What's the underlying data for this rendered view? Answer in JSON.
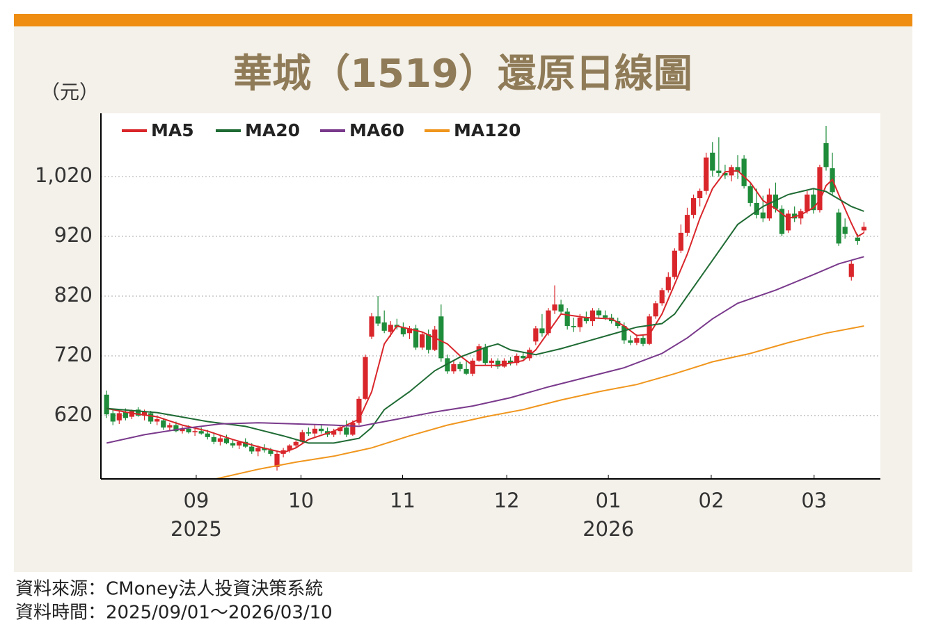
{
  "chart_data": {
    "type": "candlestick",
    "title": "華城（1519）還原日線圖",
    "y_label": "（元）",
    "up_color": "#d9262b",
    "down_color": "#1e8c3a",
    "grid": true,
    "ylim": [
      514,
      1126
    ],
    "yticks": [
      620,
      720,
      820,
      920,
      {
        "value": 1020,
        "label": "1,020"
      }
    ],
    "xlim": [
      -0.9,
      122.6
    ],
    "xticks": [
      {
        "value": 14.2,
        "label": "09"
      },
      {
        "value": 30.8,
        "label": "10"
      },
      {
        "value": 46.9,
        "label": "11"
      },
      {
        "value": 63.4,
        "label": "12"
      },
      {
        "value": 79.5,
        "label": "01"
      },
      {
        "value": 95.8,
        "label": "02"
      },
      {
        "value": 112.1,
        "label": "03"
      }
    ],
    "x_year_labels": [
      {
        "value": 14.2,
        "label": "2025"
      },
      {
        "value": 79.5,
        "label": "2026"
      }
    ],
    "x": [
      0,
      1,
      2,
      3,
      4,
      5,
      6,
      7,
      8,
      9,
      10,
      11,
      12,
      13,
      14,
      15,
      16,
      17,
      18,
      19,
      20,
      21,
      22,
      23,
      24,
      25,
      26,
      27,
      28,
      29,
      30,
      31,
      32,
      33,
      34,
      35,
      36,
      37,
      38,
      39,
      40,
      41,
      42,
      43,
      44,
      45,
      46,
      47,
      48,
      49,
      50,
      51,
      52,
      53,
      54,
      55,
      56,
      57,
      58,
      59,
      60,
      61,
      62,
      63,
      64,
      65,
      66,
      67,
      68,
      69,
      70,
      71,
      72,
      73,
      74,
      75,
      76,
      77,
      78,
      79,
      80,
      81,
      82,
      83,
      84,
      85,
      86,
      87,
      88,
      89,
      90,
      91,
      92,
      93,
      94,
      95,
      96,
      97,
      98,
      99,
      100,
      101,
      102,
      103,
      104,
      105,
      106,
      107,
      108,
      109,
      110,
      111,
      112,
      113,
      114,
      115,
      116,
      117,
      118,
      119,
      120
    ],
    "ohlc": [
      [
        655,
        662,
        616,
        622
      ],
      [
        624,
        630,
        604,
        610
      ],
      [
        612,
        628,
        606,
        624
      ],
      [
        626,
        632,
        612,
        616
      ],
      [
        618,
        630,
        614,
        628
      ],
      [
        630,
        634,
        618,
        620
      ],
      [
        620,
        630,
        612,
        626
      ],
      [
        624,
        628,
        606,
        610
      ],
      [
        610,
        618,
        604,
        614
      ],
      [
        612,
        616,
        596,
        600
      ],
      [
        600,
        608,
        594,
        604
      ],
      [
        604,
        610,
        592,
        594
      ],
      [
        594,
        602,
        590,
        598
      ],
      [
        598,
        604,
        590,
        592
      ],
      [
        592,
        598,
        586,
        594
      ],
      [
        594,
        600,
        588,
        590
      ],
      [
        590,
        596,
        580,
        584
      ],
      [
        584,
        592,
        572,
        576
      ],
      [
        576,
        586,
        570,
        582
      ],
      [
        582,
        588,
        572,
        574
      ],
      [
        574,
        580,
        566,
        570
      ],
      [
        570,
        578,
        564,
        576
      ],
      [
        576,
        582,
        566,
        568
      ],
      [
        568,
        574,
        556,
        560
      ],
      [
        560,
        570,
        552,
        566
      ],
      [
        566,
        572,
        558,
        562
      ],
      [
        562,
        566,
        552,
        556
      ],
      [
        534,
        560,
        528,
        556
      ],
      [
        556,
        566,
        550,
        562
      ],
      [
        562,
        572,
        558,
        570
      ],
      [
        570,
        580,
        566,
        576
      ],
      [
        576,
        596,
        572,
        592
      ],
      [
        592,
        600,
        586,
        590
      ],
      [
        590,
        604,
        584,
        598
      ],
      [
        598,
        606,
        590,
        594
      ],
      [
        594,
        600,
        584,
        588
      ],
      [
        588,
        598,
        584,
        594
      ],
      [
        594,
        604,
        588,
        600
      ],
      [
        600,
        612,
        584,
        588
      ],
      [
        588,
        612,
        586,
        608
      ],
      [
        608,
        652,
        604,
        648
      ],
      [
        648,
        722,
        646,
        718
      ],
      [
        752,
        792,
        748,
        786
      ],
      [
        786,
        820,
        770,
        774
      ],
      [
        776,
        796,
        758,
        762
      ],
      [
        760,
        778,
        752,
        772
      ],
      [
        772,
        782,
        764,
        768
      ],
      [
        768,
        776,
        752,
        756
      ],
      [
        758,
        770,
        748,
        766
      ],
      [
        766,
        772,
        730,
        734
      ],
      [
        734,
        760,
        730,
        756
      ],
      [
        756,
        764,
        724,
        730
      ],
      [
        730,
        770,
        728,
        764
      ],
      [
        786,
        806,
        710,
        716
      ],
      [
        716,
        722,
        690,
        694
      ],
      [
        694,
        712,
        690,
        706
      ],
      [
        706,
        710,
        694,
        698
      ],
      [
        698,
        712,
        688,
        690
      ],
      [
        690,
        716,
        686,
        712
      ],
      [
        712,
        740,
        710,
        736
      ],
      [
        734,
        740,
        704,
        708
      ],
      [
        708,
        716,
        700,
        712
      ],
      [
        712,
        716,
        698,
        702
      ],
      [
        702,
        716,
        700,
        712
      ],
      [
        712,
        718,
        704,
        708
      ],
      [
        708,
        724,
        704,
        720
      ],
      [
        720,
        726,
        714,
        716
      ],
      [
        716,
        734,
        712,
        730
      ],
      [
        744,
        770,
        738,
        766
      ],
      [
        766,
        790,
        752,
        758
      ],
      [
        758,
        800,
        754,
        796
      ],
      [
        796,
        838,
        790,
        806
      ],
      [
        806,
        814,
        790,
        794
      ],
      [
        794,
        800,
        764,
        770
      ],
      [
        770,
        784,
        760,
        768
      ],
      [
        768,
        790,
        760,
        784
      ],
      [
        784,
        794,
        774,
        778
      ],
      [
        778,
        800,
        770,
        796
      ],
      [
        796,
        800,
        784,
        788
      ],
      [
        788,
        796,
        780,
        784
      ],
      [
        784,
        790,
        774,
        778
      ],
      [
        778,
        784,
        766,
        770
      ],
      [
        770,
        776,
        740,
        746
      ],
      [
        746,
        754,
        738,
        742
      ],
      [
        742,
        756,
        738,
        750
      ],
      [
        750,
        756,
        736,
        740
      ],
      [
        740,
        790,
        738,
        786
      ],
      [
        786,
        812,
        782,
        808
      ],
      [
        808,
        834,
        804,
        830
      ],
      [
        830,
        860,
        826,
        852
      ],
      [
        852,
        900,
        848,
        896
      ],
      [
        896,
        940,
        892,
        926
      ],
      [
        926,
        968,
        920,
        956
      ],
      [
        956,
        990,
        950,
        984
      ],
      [
        984,
        1000,
        970,
        996
      ],
      [
        996,
        1060,
        990,
        1052
      ],
      [
        1060,
        1078,
        1020,
        1030
      ],
      [
        1030,
        1086,
        1020,
        1026
      ],
      [
        1026,
        1040,
        1016,
        1022
      ],
      [
        1022,
        1040,
        1012,
        1036
      ],
      [
        1036,
        1056,
        1016,
        1028
      ],
      [
        1050,
        1056,
        1000,
        1004
      ],
      [
        1004,
        1010,
        970,
        976
      ],
      [
        976,
        1000,
        950,
        956
      ],
      [
        960,
        988,
        944,
        950
      ],
      [
        950,
        1000,
        946,
        990
      ],
      [
        990,
        1010,
        960,
        966
      ],
      [
        966,
        972,
        920,
        924
      ],
      [
        930,
        964,
        926,
        958
      ],
      [
        958,
        970,
        944,
        950
      ],
      [
        950,
        966,
        940,
        962
      ],
      [
        962,
        996,
        958,
        990
      ],
      [
        990,
        1000,
        958,
        964
      ],
      [
        964,
        1040,
        960,
        1036
      ],
      [
        1076,
        1105,
        1030,
        1036
      ],
      [
        1034,
        1060,
        990,
        994
      ],
      [
        960,
        966,
        904,
        908
      ],
      [
        936,
        950,
        916,
        924
      ],
      [
        852,
        880,
        846,
        874
      ],
      [
        918,
        924,
        906,
        912
      ],
      [
        930,
        944,
        926,
        936
      ]
    ],
    "series": [
      {
        "name": "MA5",
        "color": "#d9262b",
        "x": [
          0,
          4,
          8,
          12,
          16,
          20,
          24,
          28,
          30,
          32,
          36,
          40,
          42,
          44,
          46,
          50,
          54,
          56,
          58,
          62,
          66,
          68,
          70,
          72,
          76,
          80,
          82,
          84,
          86,
          88,
          90,
          92,
          94,
          96,
          98,
          100,
          102,
          104,
          106,
          108,
          110,
          112,
          113,
          114,
          115,
          116,
          118,
          119,
          120
        ],
        "values": [
          632,
          624,
          618,
          604,
          594,
          580,
          568,
          558,
          566,
          580,
          594,
          614,
          660,
          740,
          770,
          760,
          740,
          720,
          704,
          704,
          712,
          730,
          760,
          790,
          784,
          782,
          770,
          754,
          756,
          790,
          840,
          890,
          950,
          1000,
          1028,
          1030,
          1010,
          980,
          966,
          950,
          956,
          968,
          980,
          1005,
          1015,
          990,
          942,
          920,
          926
        ]
      },
      {
        "name": "MA20",
        "color": "#1f6b34",
        "x": [
          0,
          8,
          16,
          22,
          28,
          32,
          36,
          40,
          42,
          44,
          48,
          52,
          56,
          60,
          62,
          64,
          68,
          72,
          76,
          80,
          84,
          88,
          90,
          92,
          96,
          100,
          104,
          108,
          112,
          114,
          118,
          120
        ],
        "values": [
          632,
          625,
          610,
          602,
          586,
          574,
          574,
          582,
          600,
          630,
          660,
          695,
          718,
          734,
          740,
          730,
          722,
          732,
          744,
          756,
          768,
          774,
          790,
          820,
          880,
          940,
          970,
          990,
          1000,
          995,
          970,
          962
        ]
      },
      {
        "name": "MA60",
        "color": "#7a3a8c",
        "x": [
          0,
          6,
          12,
          18,
          24,
          30,
          36,
          40,
          46,
          52,
          58,
          64,
          70,
          76,
          82,
          88,
          92,
          96,
          100,
          106,
          112,
          116,
          120
        ],
        "values": [
          574,
          588,
          598,
          606,
          608,
          606,
          604,
          602,
          614,
          626,
          636,
          650,
          668,
          684,
          700,
          724,
          750,
          782,
          808,
          830,
          856,
          874,
          886
        ]
      },
      {
        "name": "MA120",
        "color": "#f0961e",
        "x": [
          17.3,
          24,
          30,
          36,
          42,
          48,
          54,
          60,
          66,
          72,
          78,
          84,
          90,
          96,
          102,
          108,
          114,
          120
        ],
        "values": [
          514,
          530,
          542,
          552,
          566,
          586,
          604,
          618,
          630,
          646,
          660,
          672,
          690,
          710,
          724,
          742,
          758,
          770
        ]
      }
    ]
  },
  "footer": {
    "source": "資料來源：CMoney法人投資決策系統",
    "period": "資料時間：2025/09/01～2026/03/10"
  }
}
